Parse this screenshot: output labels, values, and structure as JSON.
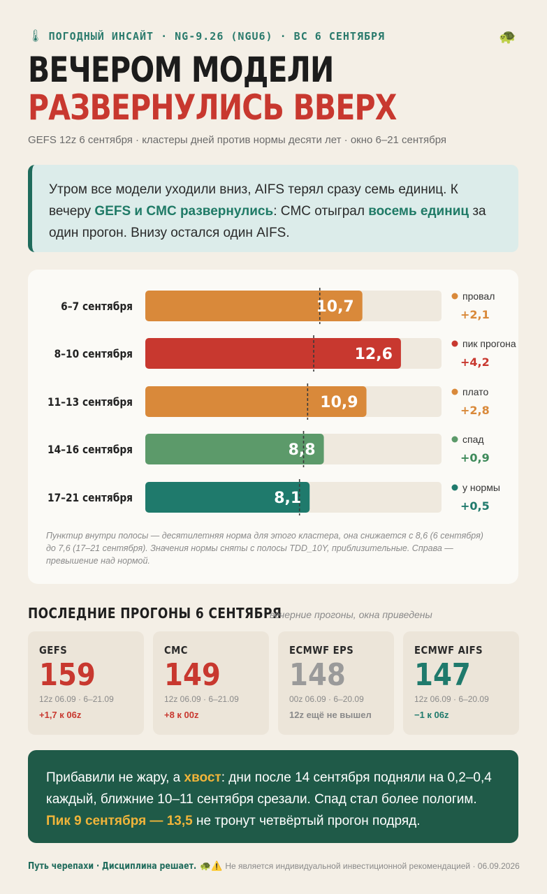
{
  "header": {
    "kicker": "ПОГОДНЫЙ ИНСАЙТ · NG-9.26 (NGU6) · ВС 6 СЕНТЯБРЯ",
    "title_line1": "ВЕЧЕРОМ МОДЕЛИ",
    "title_line2": "РАЗВЕРНУЛИСЬ ВВЕРХ",
    "subtitle": "GEFS 12z 6 сентября · кластеры дней против нормы десяти лет · окно 6–21 сентября"
  },
  "callout": {
    "t1": "Утром все модели уходили вниз, AIFS терял сразу семь единиц. К вечеру ",
    "b1": "GEFS и CMC развернулись",
    "t2": ": CMC отыграл ",
    "b2": "восемь единиц",
    "t3": " за один прогон. Внизу остался один AIFS."
  },
  "chart_data": {
    "type": "bar",
    "orientation": "horizontal",
    "categories": [
      "6–7 сентября",
      "8–10 сентября",
      "11–13 сентября",
      "14–16 сентября",
      "17–21 сентября"
    ],
    "values": [
      10.7,
      12.6,
      10.9,
      8.8,
      8.1
    ],
    "value_labels": [
      "10,7",
      "12,6",
      "10,9",
      "8,8",
      "8,1"
    ],
    "norms": [
      8.6,
      8.3,
      8.0,
      7.8,
      7.6
    ],
    "xlim": [
      0,
      14.6
    ],
    "tags": [
      "провал",
      "пик прогона",
      "плато",
      "спад",
      "у нормы"
    ],
    "deltas": [
      "+2,1",
      "+4,2",
      "+2,8",
      "+0,9",
      "+0,5"
    ],
    "colors": [
      "#d9893a",
      "#c8382f",
      "#d9893a",
      "#5c9a6a",
      "#1f7a6c"
    ],
    "delta_colors": [
      "#d9893a",
      "#c8382f",
      "#d9893a",
      "#3e8a5a",
      "#1f7a6c"
    ],
    "note": "Пунктир внутри полосы — десятилетняя норма для этого кластера, она снижается с 8,6 (6 сентября) до 7,6 (17–21 сентября). Значения нормы сняты с полосы TDD_10Y, приблизительные. Справа — превышение над нормой."
  },
  "runs": {
    "title": "ПОСЛЕДНИЕ ПРОГОНЫ 6 СЕНТЯБРЯ",
    "subtitle": "вечерние прогоны, окна приведены",
    "cards": [
      {
        "name": "GEFS",
        "value": "159",
        "meta": "12z 06.09 · 6–21.09",
        "delta": "+1,7 к 06z",
        "color": "#c8382f",
        "delta_color": "#c8382f"
      },
      {
        "name": "CMC",
        "value": "149",
        "meta": "12z 06.09 · 6–21.09",
        "delta": "+8 к 00z",
        "color": "#c8382f",
        "delta_color": "#c8382f"
      },
      {
        "name": "ECMWF EPS",
        "value": "148",
        "meta": "00z 06.09 · 6–20.09",
        "delta": "12z ещё не вышел",
        "color": "#9a9a9a",
        "delta_color": "#8a8a8a"
      },
      {
        "name": "ECMWF AIFS",
        "value": "147",
        "meta": "12z 06.09 · 6–20.09",
        "delta": "−1 к 06z",
        "color": "#1f7a6c",
        "delta_color": "#1f7a6c"
      }
    ]
  },
  "bottom": {
    "t1": "Прибавили не жару, а ",
    "b1": "хвост",
    "t2": ": дни после 14 сентября подняли на 0,2–0,4 каждый, ближние 10–11 сентября срезали. Спад стал более пологим. ",
    "b2": "Пик 9 сентября — 13,5",
    "t3": " не тронут четвёртый прогон подряд."
  },
  "footer": {
    "brand": "Путь черепахи · Дисциплина решает.",
    "disclaimer": "Не является индивидуальной инвестиционной рекомендацией · 06.09.2026"
  }
}
